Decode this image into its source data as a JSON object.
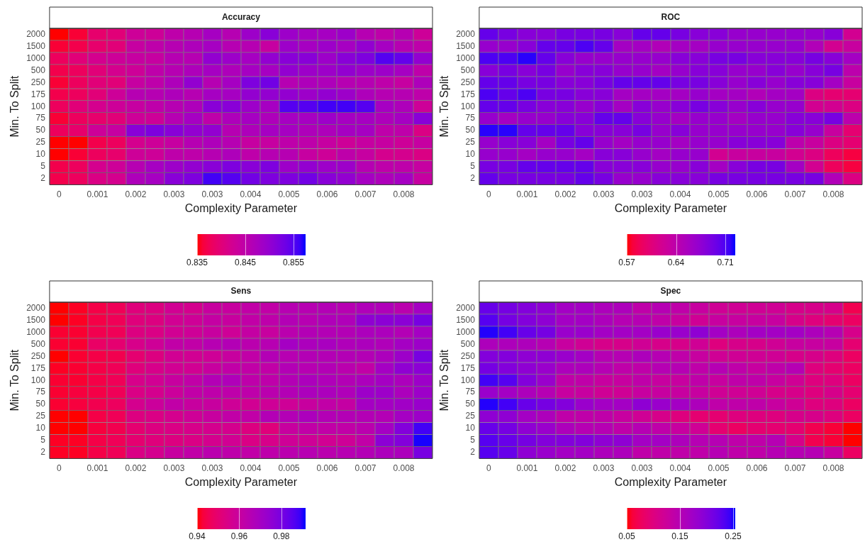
{
  "chart_data": [
    {
      "type": "heatmap",
      "title": "Accuracy",
      "xlabel": "Complexity Parameter",
      "ylabel": "Min. To Split",
      "categories": [
        "0",
        null,
        "0.001",
        null,
        "0.002",
        null,
        "0.003",
        null,
        "0.003",
        null,
        "0.004",
        null,
        "0.005",
        null,
        "0.006",
        null,
        "0.007",
        null,
        "0.008",
        null
      ],
      "y_categories": [
        "2000",
        "1500",
        "1000",
        "500",
        "250",
        "175",
        "100",
        "75",
        "50",
        "25",
        "10",
        "5",
        "2"
      ],
      "clim": [
        0.835,
        0.8575
      ],
      "cticks": [
        0.835,
        0.845,
        0.855
      ],
      "cells": [
        [
          0.835,
          0.836,
          0.839,
          0.84,
          0.843,
          0.843,
          0.845,
          0.846,
          0.848,
          0.846,
          0.849,
          0.851,
          0.849,
          0.848,
          0.848,
          0.849,
          0.846,
          0.845,
          0.846,
          0.843
        ],
        [
          0.836,
          0.837,
          0.839,
          0.84,
          0.844,
          0.845,
          0.846,
          0.847,
          0.848,
          0.846,
          0.846,
          0.844,
          0.849,
          0.848,
          0.849,
          0.848,
          0.85,
          0.848,
          0.846,
          0.845
        ],
        [
          0.838,
          0.84,
          0.842,
          0.843,
          0.844,
          0.844,
          0.846,
          0.846,
          0.85,
          0.849,
          0.848,
          0.85,
          0.851,
          0.851,
          0.849,
          0.851,
          0.852,
          0.855,
          0.854,
          0.85
        ],
        [
          0.837,
          0.838,
          0.84,
          0.842,
          0.843,
          0.845,
          0.846,
          0.847,
          0.848,
          0.847,
          0.848,
          0.848,
          0.85,
          0.849,
          0.849,
          0.85,
          0.849,
          0.849,
          0.848,
          0.845
        ],
        [
          0.836,
          0.838,
          0.84,
          0.84,
          0.844,
          0.845,
          0.847,
          0.85,
          0.846,
          0.848,
          0.852,
          0.853,
          0.846,
          0.847,
          0.847,
          0.846,
          0.846,
          0.845,
          0.844,
          0.847
        ],
        [
          0.837,
          0.838,
          0.84,
          0.843,
          0.846,
          0.846,
          0.847,
          0.846,
          0.848,
          0.848,
          0.85,
          0.85,
          0.85,
          0.849,
          0.85,
          0.849,
          0.847,
          0.846,
          0.846,
          0.845
        ],
        [
          0.838,
          0.84,
          0.842,
          0.843,
          0.844,
          0.845,
          0.846,
          0.847,
          0.851,
          0.851,
          0.849,
          0.848,
          0.855,
          0.855,
          0.856,
          0.856,
          0.855,
          0.848,
          0.847,
          0.843
        ],
        [
          0.836,
          0.838,
          0.839,
          0.84,
          0.843,
          0.843,
          0.846,
          0.848,
          0.845,
          0.847,
          0.848,
          0.847,
          0.848,
          0.848,
          0.849,
          0.848,
          0.848,
          0.847,
          0.848,
          0.851
        ],
        [
          0.838,
          0.839,
          0.843,
          0.844,
          0.851,
          0.852,
          0.851,
          0.85,
          0.85,
          0.846,
          0.847,
          0.848,
          0.848,
          0.847,
          0.847,
          0.848,
          0.848,
          0.845,
          0.845,
          0.841
        ],
        [
          0.835,
          0.835,
          0.837,
          0.838,
          0.842,
          0.843,
          0.844,
          0.846,
          0.847,
          0.846,
          0.844,
          0.844,
          0.845,
          0.845,
          0.844,
          0.843,
          0.844,
          0.844,
          0.843,
          0.844
        ],
        [
          0.835,
          0.836,
          0.838,
          0.839,
          0.843,
          0.843,
          0.845,
          0.845,
          0.846,
          0.847,
          0.845,
          0.846,
          0.846,
          0.844,
          0.843,
          0.845,
          0.844,
          0.842,
          0.842,
          0.841
        ],
        [
          0.837,
          0.838,
          0.842,
          0.843,
          0.846,
          0.848,
          0.849,
          0.85,
          0.851,
          0.852,
          0.851,
          0.852,
          0.849,
          0.85,
          0.849,
          0.849,
          0.846,
          0.845,
          0.845,
          0.844
        ],
        [
          0.837,
          0.838,
          0.841,
          0.842,
          0.847,
          0.848,
          0.851,
          0.852,
          0.856,
          0.855,
          0.853,
          0.852,
          0.852,
          0.853,
          0.851,
          0.85,
          0.848,
          0.847,
          0.848,
          0.844
        ]
      ]
    },
    {
      "type": "heatmap",
      "title": "ROC",
      "xlabel": "Complexity Parameter",
      "ylabel": "Min. To Split",
      "categories": [
        "0",
        null,
        "0.001",
        null,
        "0.002",
        null,
        "0.003",
        null,
        "0.003",
        null,
        "0.004",
        null,
        "0.005",
        null,
        "0.006",
        null,
        "0.007",
        null,
        "0.008",
        null
      ],
      "y_categories": [
        "2000",
        "1500",
        "1000",
        "500",
        "250",
        "175",
        "100",
        "75",
        "50",
        "25",
        "10",
        "5",
        "2"
      ],
      "clim": [
        0.57,
        0.724
      ],
      "cticks": [
        0.57,
        0.64,
        0.71
      ],
      "cells": [
        [
          0.7,
          0.69,
          0.68,
          0.68,
          0.69,
          0.69,
          0.69,
          0.68,
          0.7,
          0.7,
          0.69,
          0.68,
          0.68,
          0.67,
          0.67,
          0.67,
          0.67,
          0.67,
          0.68,
          0.62
        ],
        [
          0.67,
          0.67,
          0.68,
          0.7,
          0.7,
          0.71,
          0.7,
          0.66,
          0.66,
          0.65,
          0.66,
          0.66,
          0.67,
          0.67,
          0.67,
          0.67,
          0.67,
          0.65,
          0.62,
          0.63
        ],
        [
          0.71,
          0.71,
          0.72,
          0.7,
          0.68,
          0.67,
          0.67,
          0.67,
          0.67,
          0.67,
          0.68,
          0.68,
          0.69,
          0.69,
          0.68,
          0.68,
          0.68,
          0.69,
          0.68,
          0.66
        ],
        [
          0.68,
          0.69,
          0.68,
          0.69,
          0.67,
          0.68,
          0.68,
          0.67,
          0.67,
          0.66,
          0.67,
          0.68,
          0.68,
          0.67,
          0.67,
          0.68,
          0.67,
          0.68,
          0.69,
          0.64
        ],
        [
          0.7,
          0.7,
          0.69,
          0.69,
          0.68,
          0.68,
          0.69,
          0.7,
          0.7,
          0.7,
          0.69,
          0.69,
          0.68,
          0.67,
          0.68,
          0.67,
          0.68,
          0.68,
          0.66,
          0.63
        ],
        [
          0.71,
          0.7,
          0.71,
          0.69,
          0.69,
          0.68,
          0.68,
          0.66,
          0.66,
          0.66,
          0.66,
          0.67,
          0.66,
          0.66,
          0.65,
          0.66,
          0.66,
          0.61,
          0.6,
          0.6
        ],
        [
          0.7,
          0.7,
          0.69,
          0.68,
          0.68,
          0.67,
          0.68,
          0.66,
          0.68,
          0.67,
          0.68,
          0.69,
          0.68,
          0.67,
          0.68,
          0.67,
          0.67,
          0.62,
          0.62,
          0.61
        ],
        [
          0.67,
          0.66,
          0.67,
          0.67,
          0.68,
          0.68,
          0.7,
          0.7,
          0.68,
          0.67,
          0.66,
          0.67,
          0.67,
          0.66,
          0.67,
          0.67,
          0.68,
          0.68,
          0.69,
          0.64
        ],
        [
          0.72,
          0.72,
          0.7,
          0.7,
          0.7,
          0.68,
          0.68,
          0.68,
          0.69,
          0.67,
          0.68,
          0.67,
          0.67,
          0.67,
          0.67,
          0.67,
          0.68,
          0.67,
          0.63,
          0.6
        ],
        [
          0.67,
          0.68,
          0.68,
          0.66,
          0.69,
          0.7,
          0.67,
          0.66,
          0.67,
          0.67,
          0.66,
          0.67,
          0.67,
          0.68,
          0.68,
          0.68,
          0.64,
          0.63,
          0.61,
          0.6
        ],
        [
          0.67,
          0.67,
          0.66,
          0.67,
          0.67,
          0.66,
          0.68,
          0.68,
          0.67,
          0.66,
          0.67,
          0.67,
          0.62,
          0.63,
          0.63,
          0.63,
          0.62,
          0.61,
          0.59,
          0.58
        ],
        [
          0.69,
          0.69,
          0.7,
          0.7,
          0.7,
          0.7,
          0.68,
          0.68,
          0.68,
          0.67,
          0.67,
          0.68,
          0.66,
          0.68,
          0.69,
          0.69,
          0.66,
          0.62,
          0.59,
          0.58
        ],
        [
          0.7,
          0.69,
          0.69,
          0.69,
          0.69,
          0.7,
          0.69,
          0.67,
          0.67,
          0.68,
          0.68,
          0.68,
          0.69,
          0.69,
          0.69,
          0.69,
          0.69,
          0.69,
          0.65,
          0.61
        ]
      ]
    },
    {
      "type": "heatmap",
      "title": "Sens",
      "xlabel": "Complexity Parameter",
      "ylabel": "Min. To Split",
      "categories": [
        "0",
        null,
        "0.001",
        null,
        "0.002",
        null,
        "0.003",
        null,
        "0.003",
        null,
        "0.004",
        null,
        "0.005",
        null,
        "0.006",
        null,
        "0.007",
        null,
        "0.008",
        null
      ],
      "y_categories": [
        "2000",
        "1500",
        "1000",
        "500",
        "250",
        "175",
        "100",
        "75",
        "50",
        "25",
        "10",
        "5",
        "2"
      ],
      "clim": [
        0.94,
        0.9915
      ],
      "cticks": [
        0.94,
        0.96,
        0.98
      ],
      "cells": [
        [
          0.94,
          0.941,
          0.944,
          0.946,
          0.952,
          0.953,
          0.957,
          0.956,
          0.96,
          0.96,
          0.962,
          0.962,
          0.965,
          0.965,
          0.966,
          0.965,
          0.967,
          0.967,
          0.964,
          0.97
        ],
        [
          0.94,
          0.941,
          0.944,
          0.946,
          0.952,
          0.953,
          0.957,
          0.958,
          0.961,
          0.96,
          0.962,
          0.963,
          0.966,
          0.965,
          0.967,
          0.967,
          0.975,
          0.976,
          0.976,
          0.98
        ],
        [
          0.942,
          0.942,
          0.945,
          0.946,
          0.953,
          0.954,
          0.957,
          0.958,
          0.96,
          0.958,
          0.961,
          0.96,
          0.964,
          0.966,
          0.966,
          0.966,
          0.968,
          0.968,
          0.966,
          0.97
        ],
        [
          0.942,
          0.942,
          0.948,
          0.95,
          0.955,
          0.958,
          0.962,
          0.962,
          0.965,
          0.966,
          0.964,
          0.965,
          0.97,
          0.968,
          0.969,
          0.967,
          0.968,
          0.967,
          0.97,
          0.972
        ],
        [
          0.94,
          0.942,
          0.944,
          0.945,
          0.95,
          0.953,
          0.957,
          0.957,
          0.958,
          0.96,
          0.962,
          0.966,
          0.965,
          0.966,
          0.966,
          0.966,
          0.966,
          0.968,
          0.972,
          0.98
        ],
        [
          0.941,
          0.942,
          0.944,
          0.946,
          0.952,
          0.955,
          0.957,
          0.957,
          0.96,
          0.962,
          0.962,
          0.962,
          0.966,
          0.965,
          0.966,
          0.964,
          0.962,
          0.97,
          0.975,
          0.976
        ],
        [
          0.942,
          0.942,
          0.944,
          0.946,
          0.955,
          0.957,
          0.96,
          0.962,
          0.966,
          0.967,
          0.963,
          0.963,
          0.966,
          0.968,
          0.967,
          0.966,
          0.968,
          0.97,
          0.968,
          0.972
        ],
        [
          0.942,
          0.943,
          0.944,
          0.946,
          0.954,
          0.956,
          0.959,
          0.962,
          0.963,
          0.963,
          0.963,
          0.964,
          0.966,
          0.968,
          0.968,
          0.967,
          0.972,
          0.972,
          0.968,
          0.972
        ],
        [
          0.942,
          0.943,
          0.945,
          0.947,
          0.956,
          0.959,
          0.962,
          0.96,
          0.96,
          0.958,
          0.957,
          0.958,
          0.958,
          0.96,
          0.962,
          0.961,
          0.97,
          0.97,
          0.971,
          0.973
        ],
        [
          0.94,
          0.94,
          0.944,
          0.946,
          0.953,
          0.954,
          0.956,
          0.958,
          0.96,
          0.962,
          0.962,
          0.966,
          0.966,
          0.968,
          0.966,
          0.966,
          0.966,
          0.966,
          0.97,
          0.972
        ],
        [
          0.94,
          0.94,
          0.943,
          0.945,
          0.95,
          0.953,
          0.954,
          0.955,
          0.956,
          0.956,
          0.953,
          0.952,
          0.96,
          0.962,
          0.962,
          0.962,
          0.964,
          0.97,
          0.978,
          0.988
        ],
        [
          0.941,
          0.941,
          0.944,
          0.946,
          0.95,
          0.952,
          0.953,
          0.954,
          0.956,
          0.957,
          0.954,
          0.955,
          0.958,
          0.958,
          0.957,
          0.958,
          0.962,
          0.976,
          0.978,
          0.991
        ],
        [
          0.941,
          0.941,
          0.944,
          0.946,
          0.954,
          0.956,
          0.96,
          0.962,
          0.964,
          0.963,
          0.962,
          0.963,
          0.964,
          0.965,
          0.964,
          0.965,
          0.966,
          0.968,
          0.968,
          0.98
        ]
      ]
    },
    {
      "type": "heatmap",
      "title": "Spec",
      "xlabel": "Complexity Parameter",
      "ylabel": "Min. To Split",
      "categories": [
        "0",
        null,
        "0.001",
        null,
        "0.002",
        null,
        "0.003",
        null,
        "0.003",
        null,
        "0.004",
        null,
        "0.005",
        null,
        "0.006",
        null,
        "0.007",
        null,
        "0.008",
        null
      ],
      "y_categories": [
        "2000",
        "1500",
        "1000",
        "500",
        "250",
        "175",
        "100",
        "75",
        "50",
        "25",
        "10",
        "5",
        "2"
      ],
      "clim": [
        0.05,
        0.254
      ],
      "cticks": [
        0.05,
        0.15,
        0.25
      ],
      "cells": [
        [
          0.22,
          0.21,
          0.2,
          0.19,
          0.17,
          0.17,
          0.16,
          0.16,
          0.14,
          0.15,
          0.14,
          0.13,
          0.12,
          0.12,
          0.12,
          0.12,
          0.11,
          0.11,
          0.11,
          0.07
        ],
        [
          0.23,
          0.21,
          0.2,
          0.19,
          0.17,
          0.17,
          0.16,
          0.15,
          0.15,
          0.14,
          0.13,
          0.12,
          0.13,
          0.13,
          0.13,
          0.13,
          0.11,
          0.1,
          0.09,
          0.08
        ],
        [
          0.25,
          0.24,
          0.22,
          0.21,
          0.18,
          0.18,
          0.17,
          0.17,
          0.17,
          0.18,
          0.18,
          0.19,
          0.17,
          0.16,
          0.17,
          0.17,
          0.17,
          0.16,
          0.15,
          0.11
        ],
        [
          0.16,
          0.16,
          0.16,
          0.15,
          0.13,
          0.12,
          0.11,
          0.11,
          0.12,
          0.11,
          0.11,
          0.12,
          0.1,
          0.11,
          0.11,
          0.12,
          0.13,
          0.13,
          0.13,
          0.09
        ],
        [
          0.2,
          0.2,
          0.19,
          0.19,
          0.18,
          0.17,
          0.15,
          0.15,
          0.16,
          0.15,
          0.14,
          0.13,
          0.12,
          0.12,
          0.12,
          0.12,
          0.11,
          0.11,
          0.1,
          0.08
        ],
        [
          0.21,
          0.2,
          0.19,
          0.18,
          0.16,
          0.16,
          0.15,
          0.14,
          0.14,
          0.15,
          0.15,
          0.14,
          0.15,
          0.14,
          0.13,
          0.14,
          0.15,
          0.1,
          0.09,
          0.08
        ],
        [
          0.24,
          0.23,
          0.2,
          0.18,
          0.14,
          0.14,
          0.13,
          0.13,
          0.14,
          0.13,
          0.13,
          0.14,
          0.13,
          0.14,
          0.14,
          0.13,
          0.12,
          0.1,
          0.1,
          0.08
        ],
        [
          0.18,
          0.17,
          0.16,
          0.15,
          0.13,
          0.13,
          0.12,
          0.12,
          0.13,
          0.13,
          0.13,
          0.13,
          0.12,
          0.12,
          0.12,
          0.11,
          0.11,
          0.1,
          0.11,
          0.09
        ],
        [
          0.25,
          0.24,
          0.22,
          0.21,
          0.2,
          0.18,
          0.17,
          0.17,
          0.19,
          0.18,
          0.17,
          0.16,
          0.14,
          0.14,
          0.14,
          0.13,
          0.12,
          0.1,
          0.1,
          0.08
        ],
        [
          0.19,
          0.19,
          0.17,
          0.16,
          0.14,
          0.14,
          0.14,
          0.13,
          0.12,
          0.11,
          0.1,
          0.09,
          0.09,
          0.1,
          0.1,
          0.1,
          0.11,
          0.11,
          0.1,
          0.08
        ],
        [
          0.22,
          0.21,
          0.19,
          0.18,
          0.16,
          0.15,
          0.15,
          0.14,
          0.15,
          0.14,
          0.13,
          0.12,
          0.09,
          0.08,
          0.09,
          0.09,
          0.09,
          0.07,
          0.06,
          0.05
        ],
        [
          0.23,
          0.22,
          0.21,
          0.2,
          0.2,
          0.2,
          0.19,
          0.19,
          0.17,
          0.17,
          0.16,
          0.15,
          0.15,
          0.14,
          0.14,
          0.15,
          0.11,
          0.07,
          0.06,
          0.05
        ],
        [
          0.23,
          0.22,
          0.19,
          0.18,
          0.17,
          0.17,
          0.16,
          0.16,
          0.14,
          0.14,
          0.14,
          0.14,
          0.15,
          0.14,
          0.14,
          0.15,
          0.15,
          0.15,
          0.13,
          0.08
        ]
      ]
    }
  ]
}
